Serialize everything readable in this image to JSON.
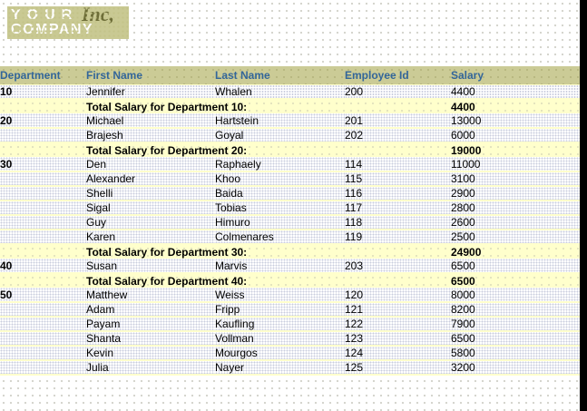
{
  "logo": {
    "line1": "YOUR",
    "line2": "COMPANY",
    "suffix": "Inc,"
  },
  "colors": {
    "header_band": "#cbcb96",
    "header_text": "#336699",
    "total_row_bg": "#ffffcc",
    "department_text": "#336699",
    "right_strip": "#000000"
  },
  "table": {
    "columns": [
      "Department",
      "First Name",
      "Last Name",
      "Employee Id",
      "Salary"
    ],
    "rows": [
      {
        "type": "data",
        "department": "10",
        "first": "Jennifer",
        "last": "Whalen",
        "id": "200",
        "salary": "4400"
      },
      {
        "type": "total",
        "label": "Total Salary for Department 10:",
        "total": "4400"
      },
      {
        "type": "data",
        "department": "20",
        "first": "Michael",
        "last": "Hartstein",
        "id": "201",
        "salary": "13000"
      },
      {
        "type": "data",
        "department": "",
        "first": "Brajesh",
        "last": "Goyal",
        "id": "202",
        "salary": "6000"
      },
      {
        "type": "total",
        "label": "Total Salary for Department 20:",
        "total": "19000"
      },
      {
        "type": "data",
        "department": "30",
        "first": "Den",
        "last": "Raphaely",
        "id": "114",
        "salary": "11000"
      },
      {
        "type": "data",
        "department": "",
        "first": "Alexander",
        "last": "Khoo",
        "id": "115",
        "salary": "3100"
      },
      {
        "type": "data",
        "department": "",
        "first": "Shelli",
        "last": "Baida",
        "id": "116",
        "salary": "2900"
      },
      {
        "type": "data",
        "department": "",
        "first": "Sigal",
        "last": "Tobias",
        "id": "117",
        "salary": "2800"
      },
      {
        "type": "data",
        "department": "",
        "first": "Guy",
        "last": "Himuro",
        "id": "118",
        "salary": "2600"
      },
      {
        "type": "data",
        "department": "",
        "first": "Karen",
        "last": "Colmenares",
        "id": "119",
        "salary": "2500"
      },
      {
        "type": "total",
        "label": "Total Salary for Department 30:",
        "total": "24900"
      },
      {
        "type": "data",
        "department": "40",
        "first": "Susan",
        "last": "Marvis",
        "id": "203",
        "salary": "6500"
      },
      {
        "type": "total",
        "label": "Total Salary for Department 40:",
        "total": "6500"
      },
      {
        "type": "data",
        "department": "50",
        "first": "Matthew",
        "last": "Weiss",
        "id": "120",
        "salary": "8000"
      },
      {
        "type": "data",
        "department": "",
        "first": "Adam",
        "last": "Fripp",
        "id": "121",
        "salary": "8200"
      },
      {
        "type": "data",
        "department": "",
        "first": "Payam",
        "last": "Kaufling",
        "id": "122",
        "salary": "7900"
      },
      {
        "type": "data",
        "department": "",
        "first": "Shanta",
        "last": "Vollman",
        "id": "123",
        "salary": "6500"
      },
      {
        "type": "data",
        "department": "",
        "first": "Kevin",
        "last": "Mourgos",
        "id": "124",
        "salary": "5800"
      },
      {
        "type": "data",
        "department": "",
        "first": "Julia",
        "last": "Nayer",
        "id": "125",
        "salary": "3200"
      }
    ]
  }
}
